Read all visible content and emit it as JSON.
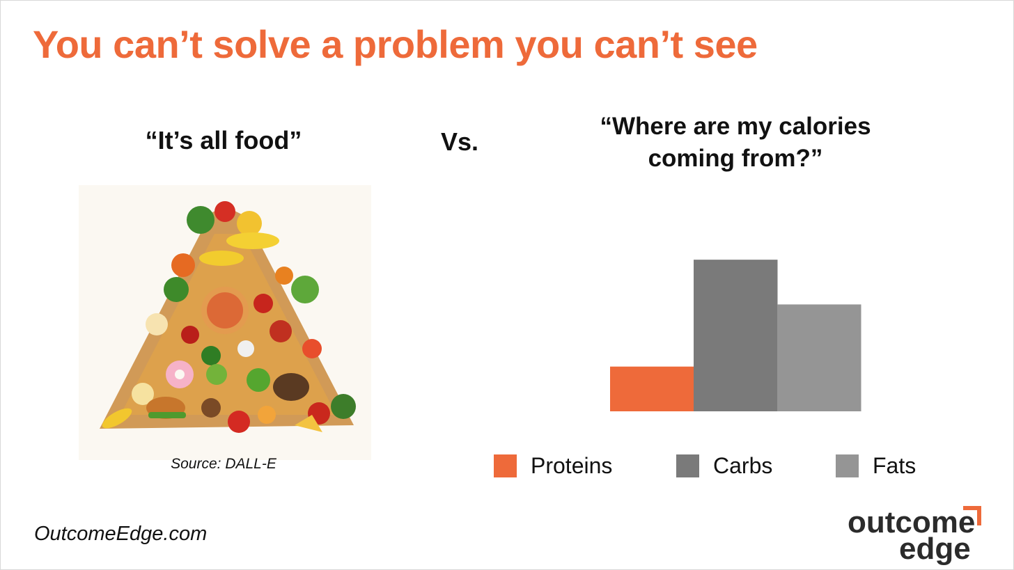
{
  "slide": {
    "title": "You can’t solve a problem you can’t see",
    "left_heading": "“It’s all food”",
    "vs_label": "Vs.",
    "right_heading_line1": "“Where are my calories",
    "right_heading_line2": "coming from?”",
    "image_source": "Source: DALL-E",
    "footer_url": "OutcomeEdge.com",
    "logo_line1": "outcome",
    "logo_line2": "edge"
  },
  "colors": {
    "accent": "#ee6a3a",
    "proteins": "#ee6a3a",
    "carbs": "#7a7a7a",
    "fats": "#959595"
  },
  "chart_data": {
    "type": "bar",
    "title": "",
    "categories": [
      "Proteins",
      "Carbs",
      "Fats"
    ],
    "values": [
      18,
      61,
      43
    ],
    "ylim": [
      0,
      70
    ],
    "grid": false,
    "legend_position": "bottom",
    "colors": [
      "#ee6a3a",
      "#7a7a7a",
      "#959595"
    ],
    "axes_visible": false
  }
}
